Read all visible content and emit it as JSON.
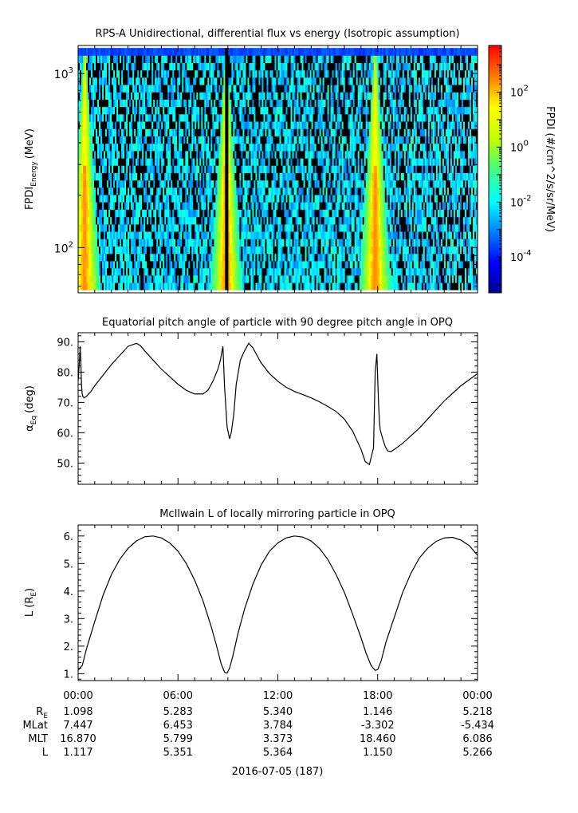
{
  "chart_data": [
    {
      "type": "heatmap",
      "title": "RPS-A Unidirectional, differential flux vs energy (Isotropic assumption)",
      "ylabel_main": "FPDI",
      "ylabel_sub": "Energy",
      "ylabel_unit": "(MeV)",
      "yscale": "log",
      "ylim": [
        55,
        1450
      ],
      "yticks": [
        {
          "value": 100,
          "base": "10",
          "exp": "2"
        },
        {
          "value": 1000,
          "base": "10",
          "exp": "3"
        }
      ],
      "energy_bins": [
        60,
        66,
        73,
        80,
        88,
        97,
        107,
        118,
        130,
        143,
        158,
        174,
        192,
        211,
        233,
        256,
        283,
        311,
        343,
        378,
        417,
        459,
        506,
        558,
        615,
        677,
        746,
        822,
        906,
        998,
        1100,
        1212,
        1336
      ],
      "colorbar": {
        "label": "FPDI (#/cm^2/s/sr/MeV)",
        "scale": "log",
        "range": [
          5e-06,
          5000
        ],
        "ticks": [
          {
            "value": 0.0001,
            "base": "10",
            "exp": "-4"
          },
          {
            "value": 0.01,
            "base": "10",
            "exp": "-2"
          },
          {
            "value": 1,
            "base": "10",
            "exp": "0"
          },
          {
            "value": 100,
            "base": "10",
            "exp": "2"
          }
        ]
      }
    },
    {
      "type": "line",
      "title": "Equatorial pitch angle of particle with 90 degree pitch angle in OPQ",
      "ylabel_main": "α",
      "ylabel_sub": "Eq",
      "ylabel_unit": "(deg)",
      "ylim": [
        43,
        93
      ],
      "yticks": [
        {
          "value": 50,
          "label": "50."
        },
        {
          "value": 60,
          "label": "60."
        },
        {
          "value": 70,
          "label": "70."
        },
        {
          "value": 80,
          "label": "80."
        },
        {
          "value": 90,
          "label": "90."
        }
      ],
      "series": [
        {
          "x": [
            0,
            0.08,
            0.12,
            0.16,
            0.2,
            0.24,
            0.28,
            0.35,
            0.5,
            0.75,
            1,
            1.5,
            2,
            2.5,
            3,
            3.5,
            3.75,
            4,
            4.5,
            5,
            5.5,
            6,
            6.5,
            7,
            7.5,
            7.8,
            8.1,
            8.4,
            8.55,
            8.7,
            8.8,
            8.95,
            9.1,
            9.2,
            9.35,
            9.5,
            9.75,
            10,
            10.25,
            10.5,
            10.75,
            11,
            11.5,
            12,
            12.5,
            13,
            13.5,
            14,
            14.5,
            15,
            15.5,
            16,
            16.5,
            17,
            17.25,
            17.5,
            17.75,
            17.85,
            17.95,
            18.05,
            18.1,
            18.15,
            18.2,
            18.3,
            18.45,
            18.6,
            18.8,
            19,
            19.5,
            20,
            20.5,
            21,
            21.5,
            22,
            22.5,
            23,
            23.5,
            24
          ],
          "y": [
            77,
            84,
            88.5,
            84,
            76,
            73,
            72,
            71.5,
            72,
            73.5,
            75.5,
            79,
            82.5,
            85.5,
            88.5,
            89.5,
            88.7,
            87,
            84,
            81,
            78.5,
            76,
            74,
            72.8,
            72.8,
            74,
            77,
            81,
            84,
            88.5,
            75,
            62,
            58,
            60,
            66,
            76,
            84,
            87,
            89.5,
            88,
            85.5,
            83,
            79.5,
            77,
            75,
            73.6,
            72.6,
            71.5,
            70.2,
            68.7,
            67,
            64.5,
            60.5,
            54.5,
            50.5,
            49.5,
            55,
            80,
            86,
            70,
            64,
            61,
            60,
            58,
            55.5,
            54,
            53.8,
            54.5,
            56.5,
            59,
            61.5,
            64.5,
            67.5,
            70.5,
            73,
            75.5,
            77.5,
            79.5
          ]
        }
      ]
    },
    {
      "type": "line",
      "title": "McIlwain L of locally mirroring particle in OPQ",
      "ylabel_main": "L (R",
      "ylabel_sub": "E",
      "ylabel_unit": ")",
      "ylim": [
        0.75,
        6.4
      ],
      "yticks": [
        {
          "value": 1,
          "label": "1."
        },
        {
          "value": 2,
          "label": "2."
        },
        {
          "value": 3,
          "label": "3."
        },
        {
          "value": 4,
          "label": "4."
        },
        {
          "value": 5,
          "label": "5."
        },
        {
          "value": 6,
          "label": "6."
        }
      ],
      "series": [
        {
          "x": [
            0,
            0.25,
            0.5,
            1,
            1.5,
            2,
            2.5,
            3,
            3.5,
            4,
            4.5,
            5,
            5.5,
            6,
            6.5,
            7,
            7.5,
            8,
            8.3,
            8.6,
            8.8,
            8.95,
            9.1,
            9.3,
            9.6,
            10,
            10.5,
            11,
            11.5,
            12,
            12.5,
            13,
            13.5,
            14,
            14.5,
            15,
            15.5,
            16,
            16.5,
            17,
            17.3,
            17.6,
            17.85,
            18,
            18.2,
            18.5,
            19,
            19.5,
            20,
            20.5,
            21,
            21.5,
            22,
            22.5,
            23,
            23.5,
            24
          ],
          "y": [
            1.12,
            1.3,
            1.9,
            2.9,
            3.85,
            4.6,
            5.15,
            5.55,
            5.82,
            5.97,
            6.0,
            5.93,
            5.75,
            5.45,
            5.0,
            4.4,
            3.65,
            2.7,
            2.05,
            1.35,
            1.05,
            1.02,
            1.2,
            1.65,
            2.45,
            3.35,
            4.25,
            4.95,
            5.45,
            5.75,
            5.93,
            6.0,
            5.96,
            5.82,
            5.55,
            5.15,
            4.6,
            3.95,
            3.15,
            2.3,
            1.75,
            1.3,
            1.12,
            1.15,
            1.45,
            2.15,
            3.05,
            3.95,
            4.65,
            5.2,
            5.55,
            5.8,
            5.93,
            5.95,
            5.85,
            5.65,
            5.3
          ]
        }
      ]
    }
  ],
  "xaxis": {
    "range_hours": [
      0,
      24
    ],
    "ticks": [
      {
        "hour": 0,
        "label": "00:00"
      },
      {
        "hour": 6,
        "label": "06:00"
      },
      {
        "hour": 12,
        "label": "12:00"
      },
      {
        "hour": 18,
        "label": "18:00"
      },
      {
        "hour": 24,
        "label": "00:00"
      }
    ],
    "date_label": "2016-07-05 (187)"
  },
  "ephemeris": {
    "rows": [
      {
        "label_main": "R",
        "label_sub": "E",
        "values": [
          "1.098",
          "5.283",
          "5.340",
          "1.146",
          "5.218"
        ]
      },
      {
        "label_main": "MLat",
        "label_sub": "",
        "values": [
          "7.447",
          "6.453",
          "3.784",
          "-3.302",
          "-5.434"
        ]
      },
      {
        "label_main": "MLT",
        "label_sub": "",
        "values": [
          "16.870",
          "5.799",
          "3.373",
          "18.460",
          "6.086"
        ]
      },
      {
        "label_main": "L",
        "label_sub": "",
        "values": [
          "1.117",
          "5.351",
          "5.364",
          "1.150",
          "5.266"
        ]
      }
    ]
  }
}
